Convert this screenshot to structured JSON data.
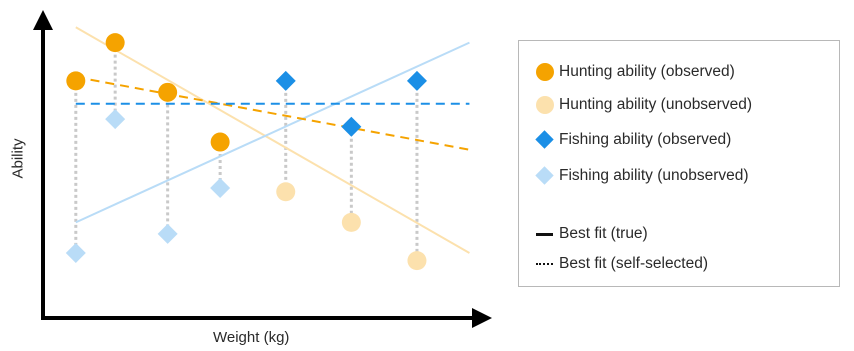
{
  "chart_data": {
    "type": "scatter",
    "xlabel": "Weight (kg)",
    "ylabel": "Ability",
    "x": [
      1,
      2,
      3,
      4,
      5,
      6
    ],
    "series": [
      {
        "name": "Hunting ability (observed)",
        "marker": "circle",
        "color": "#f5a300",
        "points": [
          [
            1,
            8.8
          ],
          [
            1.6,
            9.8
          ],
          [
            2.4,
            8.5
          ],
          [
            3.2,
            7.2
          ]
        ]
      },
      {
        "name": "Hunting ability (unobserved)",
        "marker": "circle",
        "color": "#fce1ad",
        "points": [
          [
            4.2,
            5.9
          ],
          [
            5.2,
            5.1
          ],
          [
            6.2,
            4.1
          ]
        ]
      },
      {
        "name": "Fishing ability (observed)",
        "marker": "diamond",
        "color": "#1b8fe6",
        "points": [
          [
            4.2,
            8.8
          ],
          [
            5.2,
            7.6
          ],
          [
            6.2,
            8.8
          ]
        ]
      },
      {
        "name": "Fishing ability (unobserved)",
        "marker": "diamond",
        "color": "#b9dcf7",
        "points": [
          [
            1,
            4.3
          ],
          [
            1.6,
            7.8
          ],
          [
            2.4,
            4.8
          ],
          [
            3.2,
            6.0
          ]
        ]
      }
    ],
    "connectors": [
      [
        1,
        8.8,
        4.3
      ],
      [
        1.6,
        9.8,
        7.8
      ],
      [
        2.4,
        8.5,
        4.8
      ],
      [
        3.2,
        7.2,
        6.0
      ],
      [
        4.2,
        8.8,
        5.9
      ],
      [
        5.2,
        7.6,
        5.1
      ],
      [
        6.2,
        8.8,
        4.1
      ]
    ],
    "fit_lines": [
      {
        "label": "hunting-true",
        "style": "solid",
        "color": "#fce1ad",
        "from": [
          1,
          10.2
        ],
        "to": [
          7,
          4.3
        ]
      },
      {
        "label": "fishing-true",
        "style": "solid",
        "color": "#b9dcf7",
        "from": [
          1,
          5.1
        ],
        "to": [
          7,
          9.8
        ]
      },
      {
        "label": "hunting-self-selected",
        "style": "dashed",
        "color": "#f5a300",
        "from": [
          1,
          8.9
        ],
        "to": [
          7,
          7.0
        ]
      },
      {
        "label": "fishing-self-selected",
        "style": "dashed",
        "color": "#1b8fe6",
        "from": [
          1,
          8.2
        ],
        "to": [
          7,
          8.2
        ]
      }
    ],
    "xlim": [
      0.5,
      7.1
    ],
    "ylim": [
      2.6,
      10.6
    ],
    "grid": false,
    "ticks": false,
    "legend_position": "right",
    "legend": [
      {
        "label": "Hunting ability (observed)",
        "symbol": "circle",
        "color": "#f5a300"
      },
      {
        "label": "Hunting ability (unobserved)",
        "symbol": "circle",
        "color": "#fce1ad"
      },
      {
        "label": "Fishing ability (observed)",
        "symbol": "diamond",
        "color": "#1b8fe6"
      },
      {
        "label": "Fishing ability (unobserved)",
        "symbol": "diamond",
        "color": "#b9dcf7"
      },
      {
        "label": "Best fit (true)",
        "symbol": "solid-line",
        "color": "#111111"
      },
      {
        "label": "Best fit (self-selected)",
        "symbol": "dotted-line",
        "color": "#111111"
      }
    ]
  }
}
